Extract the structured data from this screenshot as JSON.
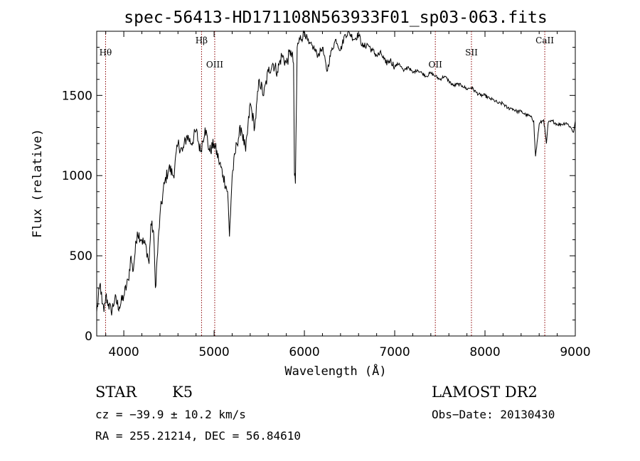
{
  "chart_data": {
    "type": "line",
    "title": "spec-56413-HD171108N563933F01_sp03-063.fits",
    "xlabel": "Wavelength (Å)",
    "ylabel": "Flux (relative)",
    "xlim": [
      3700,
      9000
    ],
    "ylim": [
      0,
      1900
    ],
    "x_ticks": [
      4000,
      5000,
      6000,
      7000,
      8000,
      9000
    ],
    "y_ticks": [
      0,
      500,
      1000,
      1500
    ],
    "grid": false,
    "series": [
      {
        "color": "#000000",
        "x": [
          3700,
          3740,
          3760,
          3780,
          3800,
          3830,
          3860,
          3900,
          3950,
          4000,
          4050,
          4080,
          4100,
          4150,
          4200,
          4250,
          4280,
          4300,
          4330,
          4350,
          4400,
          4450,
          4500,
          4550,
          4600,
          4650,
          4700,
          4750,
          4800,
          4850,
          4900,
          4950,
          5000,
          5050,
          5100,
          5150,
          5170,
          5200,
          5250,
          5300,
          5350,
          5400,
          5450,
          5500,
          5550,
          5600,
          5650,
          5700,
          5750,
          5800,
          5850,
          5880,
          5890,
          5900,
          5920,
          5950,
          6000,
          6050,
          6100,
          6150,
          6200,
          6250,
          6300,
          6350,
          6400,
          6450,
          6500,
          6550,
          6600,
          6650,
          6700,
          6750,
          6800,
          6850,
          6900,
          6950,
          7000,
          7050,
          7100,
          7150,
          7200,
          7250,
          7300,
          7350,
          7400,
          7450,
          7500,
          7550,
          7600,
          7650,
          7700,
          7750,
          7800,
          7850,
          7900,
          7950,
          8000,
          8050,
          8100,
          8150,
          8200,
          8250,
          8300,
          8350,
          8400,
          8450,
          8500,
          8540,
          8560,
          8600,
          8650,
          8680,
          8700,
          8750,
          8800,
          8850,
          8900,
          8950,
          8980,
          9000
        ],
        "y": [
          150,
          330,
          200,
          150,
          250,
          200,
          150,
          230,
          180,
          250,
          350,
          500,
          400,
          650,
          600,
          550,
          450,
          700,
          650,
          300,
          750,
          950,
          1050,
          1000,
          1200,
          1150,
          1250,
          1200,
          1280,
          1150,
          1300,
          1150,
          1200,
          1100,
          1000,
          900,
          620,
          1000,
          1200,
          1300,
          1150,
          1450,
          1300,
          1600,
          1500,
          1650,
          1700,
          1650,
          1750,
          1700,
          1780,
          1700,
          1000,
          950,
          1800,
          1850,
          1900,
          1820,
          1800,
          1750,
          1800,
          1650,
          1780,
          1850,
          1780,
          1880,
          1890,
          1850,
          1880,
          1800,
          1820,
          1780,
          1750,
          1760,
          1700,
          1720,
          1680,
          1700,
          1650,
          1680,
          1640,
          1660,
          1640,
          1620,
          1640,
          1620,
          1600,
          1620,
          1590,
          1560,
          1570,
          1560,
          1540,
          1550,
          1520,
          1500,
          1500,
          1480,
          1470,
          1450,
          1450,
          1420,
          1420,
          1400,
          1400,
          1380,
          1370,
          1340,
          1120,
          1320,
          1350,
          1200,
          1330,
          1340,
          1320,
          1320,
          1330,
          1300,
          1270,
          1340
        ]
      }
    ],
    "lines": [
      {
        "label": "Hθ",
        "x": 3798
      },
      {
        "label": "Hβ",
        "x": 4861
      },
      {
        "label": "OIII",
        "x": 5007
      },
      {
        "label": "OII",
        "x": 7450
      },
      {
        "label": "SII",
        "x": 7850
      },
      {
        "label": "CaII",
        "x": 8662
      }
    ],
    "line_color": "#8b0000"
  },
  "info": {
    "object_type": "STAR",
    "subclass": "K5",
    "survey": "LAMOST DR2",
    "cz": "cz = −39.9 ± 10.2 km/s",
    "obs_date": "Obs−Date: 20130430",
    "coords": "RA = 255.21214, DEC =  56.84610"
  }
}
